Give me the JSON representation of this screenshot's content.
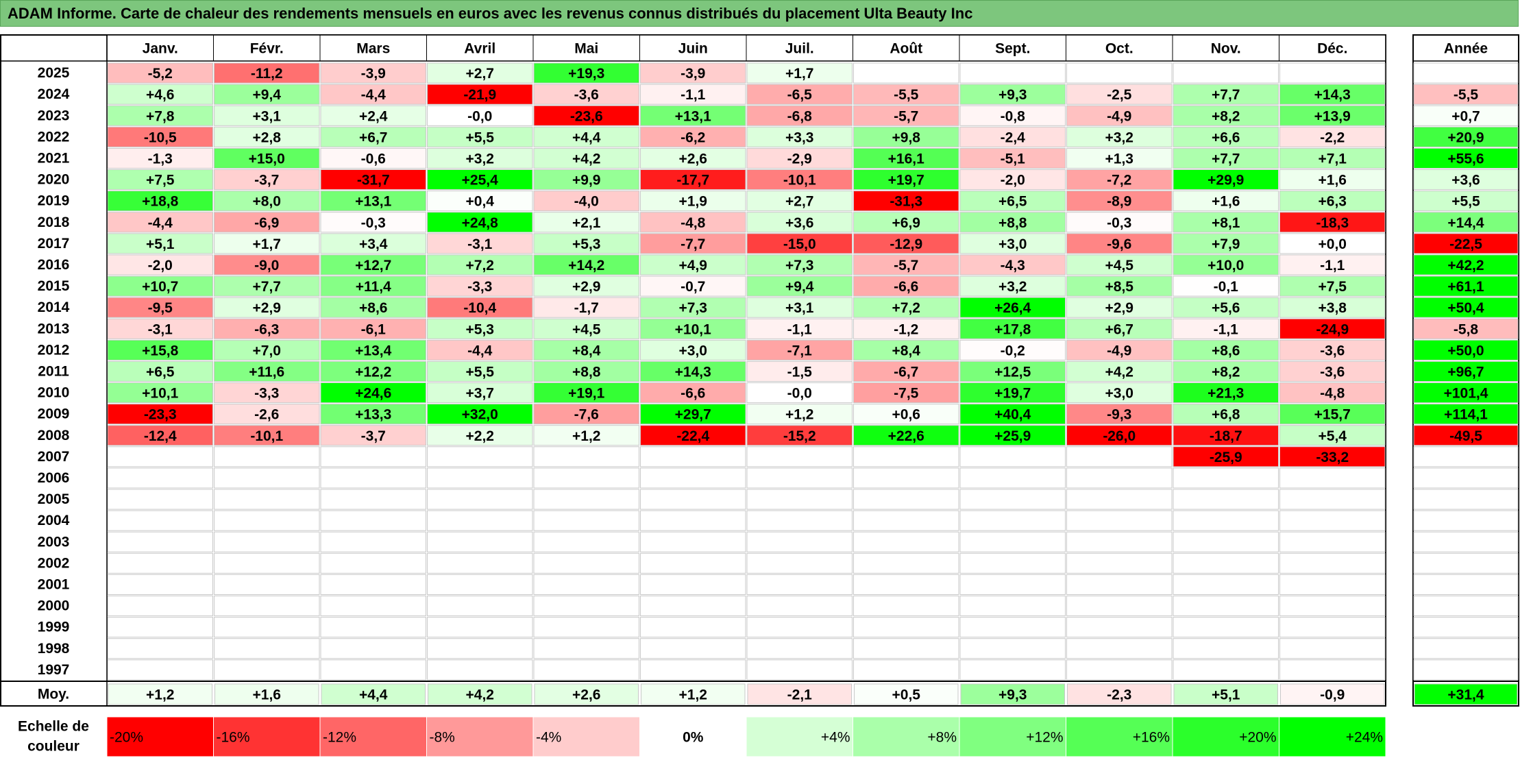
{
  "title": "ADAM Informe. Carte de chaleur des rendements mensuels en euros avec les revenus connus distribués du placement Ulta Beauty Inc",
  "chart_data": {
    "type": "heatmap",
    "months": [
      "Janv.",
      "Févr.",
      "Mars",
      "Avril",
      "Mai",
      "Juin",
      "Juil.",
      "Août",
      "Sept.",
      "Oct.",
      "Nov.",
      "Déc."
    ],
    "year_header": "Année",
    "avg_label": "Moy.",
    "scale_label": "Echelle de couleur",
    "rows": [
      {
        "year": "2025",
        "values": [
          "-5,2",
          "-11,2",
          "-3,9",
          "+2,7",
          "+19,3",
          "-3,9",
          "+1,7",
          "",
          "",
          "",
          "",
          ""
        ],
        "annual": ""
      },
      {
        "year": "2024",
        "values": [
          "+4,6",
          "+9,4",
          "-4,4",
          "-21,9",
          "-3,6",
          "-1,1",
          "-6,5",
          "-5,5",
          "+9,3",
          "-2,5",
          "+7,7",
          "+14,3"
        ],
        "annual": "-5,5"
      },
      {
        "year": "2023",
        "values": [
          "+7,8",
          "+3,1",
          "+2,4",
          "-0,0",
          "-23,6",
          "+13,1",
          "-6,8",
          "-5,7",
          "-0,8",
          "-4,9",
          "+8,2",
          "+13,9"
        ],
        "annual": "+0,7"
      },
      {
        "year": "2022",
        "values": [
          "-10,5",
          "+2,8",
          "+6,7",
          "+5,5",
          "+4,4",
          "-6,2",
          "+3,3",
          "+9,8",
          "-2,4",
          "+3,2",
          "+6,6",
          "-2,2"
        ],
        "annual": "+20,9"
      },
      {
        "year": "2021",
        "values": [
          "-1,3",
          "+15,0",
          "-0,6",
          "+3,2",
          "+4,2",
          "+2,6",
          "-2,9",
          "+16,1",
          "-5,1",
          "+1,3",
          "+7,7",
          "+7,1"
        ],
        "annual": "+55,6"
      },
      {
        "year": "2020",
        "values": [
          "+7,5",
          "-3,7",
          "-31,7",
          "+25,4",
          "+9,9",
          "-17,7",
          "-10,1",
          "+19,7",
          "-2,0",
          "-7,2",
          "+29,9",
          "+1,6"
        ],
        "annual": "+3,6"
      },
      {
        "year": "2019",
        "values": [
          "+18,8",
          "+8,0",
          "+13,1",
          "+0,4",
          "-4,0",
          "+1,9",
          "+2,7",
          "-31,3",
          "+6,5",
          "-8,9",
          "+1,6",
          "+6,3"
        ],
        "annual": "+5,5"
      },
      {
        "year": "2018",
        "values": [
          "-4,4",
          "-6,9",
          "-0,3",
          "+24,8",
          "+2,1",
          "-4,8",
          "+3,6",
          "+6,9",
          "+8,8",
          "-0,3",
          "+8,1",
          "-18,3"
        ],
        "annual": "+14,4"
      },
      {
        "year": "2017",
        "values": [
          "+5,1",
          "+1,7",
          "+3,4",
          "-3,1",
          "+5,3",
          "-7,7",
          "-15,0",
          "-12,9",
          "+3,0",
          "-9,6",
          "+7,9",
          "+0,0"
        ],
        "annual": "-22,5"
      },
      {
        "year": "2016",
        "values": [
          "-2,0",
          "-9,0",
          "+12,7",
          "+7,2",
          "+14,2",
          "+4,9",
          "+7,3",
          "-5,7",
          "-4,3",
          "+4,5",
          "+10,0",
          "-1,1"
        ],
        "annual": "+42,2"
      },
      {
        "year": "2015",
        "values": [
          "+10,7",
          "+7,7",
          "+11,4",
          "-3,3",
          "+2,9",
          "-0,7",
          "+9,4",
          "-6,6",
          "+3,2",
          "+8,5",
          "-0,1",
          "+7,5"
        ],
        "annual": "+61,1"
      },
      {
        "year": "2014",
        "values": [
          "-9,5",
          "+2,9",
          "+8,6",
          "-10,4",
          "-1,7",
          "+7,3",
          "+3,1",
          "+7,2",
          "+26,4",
          "+2,9",
          "+5,6",
          "+3,8"
        ],
        "annual": "+50,4"
      },
      {
        "year": "2013",
        "values": [
          "-3,1",
          "-6,3",
          "-6,1",
          "+5,3",
          "+4,5",
          "+10,1",
          "-1,1",
          "-1,2",
          "+17,8",
          "+6,7",
          "-1,1",
          "-24,9"
        ],
        "annual": "-5,8"
      },
      {
        "year": "2012",
        "values": [
          "+15,8",
          "+7,0",
          "+13,4",
          "-4,4",
          "+8,4",
          "+3,0",
          "-7,1",
          "+8,4",
          "-0,2",
          "-4,9",
          "+8,6",
          "-3,6"
        ],
        "annual": "+50,0"
      },
      {
        "year": "2011",
        "values": [
          "+6,5",
          "+11,6",
          "+12,2",
          "+5,5",
          "+8,8",
          "+14,3",
          "-1,5",
          "-6,7",
          "+12,5",
          "+4,2",
          "+8,2",
          "-3,6"
        ],
        "annual": "+96,7"
      },
      {
        "year": "2010",
        "values": [
          "+10,1",
          "-3,3",
          "+24,6",
          "+3,7",
          "+19,1",
          "-6,6",
          "-0,0",
          "-7,5",
          "+19,7",
          "+3,0",
          "+21,3",
          "-4,8"
        ],
        "annual": "+101,4"
      },
      {
        "year": "2009",
        "values": [
          "-23,3",
          "-2,6",
          "+13,3",
          "+32,0",
          "-7,6",
          "+29,7",
          "+1,2",
          "+0,6",
          "+40,4",
          "-9,3",
          "+6,8",
          "+15,7"
        ],
        "annual": "+114,1"
      },
      {
        "year": "2008",
        "values": [
          "-12,4",
          "-10,1",
          "-3,7",
          "+2,2",
          "+1,2",
          "-22,4",
          "-15,2",
          "+22,6",
          "+25,9",
          "-26,0",
          "-18,7",
          "+5,4"
        ],
        "annual": "-49,5"
      },
      {
        "year": "2007",
        "values": [
          "",
          "",
          "",
          "",
          "",
          "",
          "",
          "",
          "",
          "",
          "-25,9",
          "-33,2"
        ],
        "annual": ""
      },
      {
        "year": "2006",
        "values": [
          "",
          "",
          "",
          "",
          "",
          "",
          "",
          "",
          "",
          "",
          "",
          ""
        ],
        "annual": ""
      },
      {
        "year": "2005",
        "values": [
          "",
          "",
          "",
          "",
          "",
          "",
          "",
          "",
          "",
          "",
          "",
          ""
        ],
        "annual": ""
      },
      {
        "year": "2004",
        "values": [
          "",
          "",
          "",
          "",
          "",
          "",
          "",
          "",
          "",
          "",
          "",
          ""
        ],
        "annual": ""
      },
      {
        "year": "2003",
        "values": [
          "",
          "",
          "",
          "",
          "",
          "",
          "",
          "",
          "",
          "",
          "",
          ""
        ],
        "annual": ""
      },
      {
        "year": "2002",
        "values": [
          "",
          "",
          "",
          "",
          "",
          "",
          "",
          "",
          "",
          "",
          "",
          ""
        ],
        "annual": ""
      },
      {
        "year": "2001",
        "values": [
          "",
          "",
          "",
          "",
          "",
          "",
          "",
          "",
          "",
          "",
          "",
          ""
        ],
        "annual": ""
      },
      {
        "year": "2000",
        "values": [
          "",
          "",
          "",
          "",
          "",
          "",
          "",
          "",
          "",
          "",
          "",
          ""
        ],
        "annual": ""
      },
      {
        "year": "1999",
        "values": [
          "",
          "",
          "",
          "",
          "",
          "",
          "",
          "",
          "",
          "",
          "",
          ""
        ],
        "annual": ""
      },
      {
        "year": "1998",
        "values": [
          "",
          "",
          "",
          "",
          "",
          "",
          "",
          "",
          "",
          "",
          "",
          ""
        ],
        "annual": ""
      },
      {
        "year": "1997",
        "values": [
          "",
          "",
          "",
          "",
          "",
          "",
          "",
          "",
          "",
          "",
          "",
          ""
        ],
        "annual": ""
      }
    ],
    "averages": [
      "+1,2",
      "+1,6",
      "+4,4",
      "+4,2",
      "+2,6",
      "+1,2",
      "-2,1",
      "+0,5",
      "+9,3",
      "-2,3",
      "+5,1",
      "-0,9"
    ],
    "avg_annual": "+31,4",
    "scale": [
      {
        "label": "-20%",
        "value": -20,
        "align": "left"
      },
      {
        "label": "-16%",
        "value": -16,
        "align": "left"
      },
      {
        "label": "-12%",
        "value": -12,
        "align": "left"
      },
      {
        "label": "-8%",
        "value": -8,
        "align": "left"
      },
      {
        "label": "-4%",
        "value": -4,
        "align": "left"
      },
      {
        "label": "0%",
        "value": 0,
        "align": "center"
      },
      {
        "label": "+4%",
        "value": 4,
        "align": "right"
      },
      {
        "label": "+8%",
        "value": 8,
        "align": "right"
      },
      {
        "label": "+12%",
        "value": 12,
        "align": "right"
      },
      {
        "label": "+16%",
        "value": 16,
        "align": "right"
      },
      {
        "label": "+20%",
        "value": 20,
        "align": "right"
      },
      {
        "label": "+24%",
        "value": 24,
        "align": "right"
      }
    ],
    "colors": {
      "negative": "#ff0000",
      "positive": "#00ee00",
      "neutral": "#ffffff",
      "title_bg": "#7dc67d"
    }
  }
}
